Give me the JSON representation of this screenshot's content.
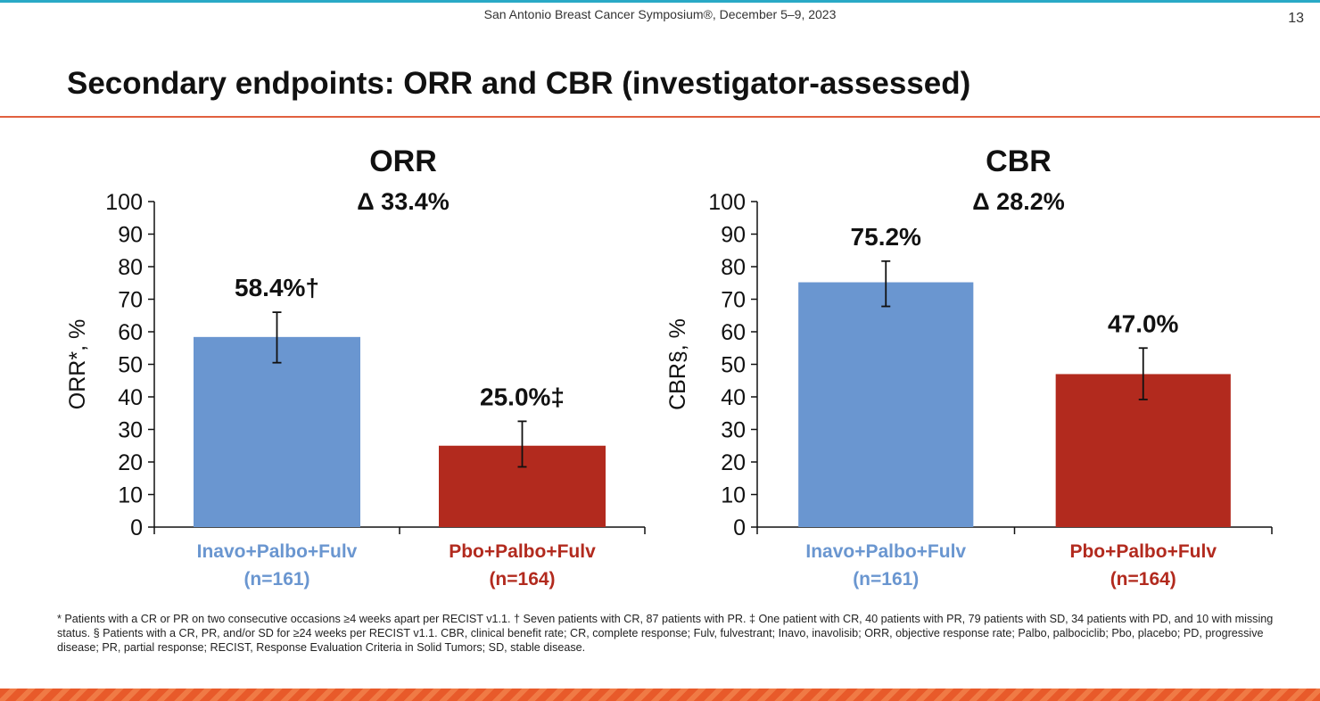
{
  "header": {
    "conference": "San Antonio Breast Cancer Symposium®, December 5–9, 2023",
    "page_number": "13"
  },
  "slide_title": "Secondary endpoints: ORR and CBR (investigator-assessed)",
  "colors": {
    "inavo": "#6a96d0",
    "pbo": "#b22a1e",
    "inavo_label": "#6a96d0",
    "pbo_label": "#b22a1e",
    "rule": "#e1603f"
  },
  "chart_data": [
    {
      "type": "bar",
      "title": "ORR",
      "subtitle": "Δ 33.4%",
      "ylabel": "ORR*, %",
      "ylim": [
        0,
        100
      ],
      "yticks": [
        "0",
        "10",
        "20",
        "30",
        "40",
        "50",
        "60",
        "70",
        "80",
        "90",
        "100"
      ],
      "grid": false,
      "categories": [
        {
          "line1": "Inavo+Palbo+Fulv",
          "line2": "(n=161)"
        },
        {
          "line1": "Pbo+Palbo+Fulv",
          "line2": "(n=164)"
        }
      ],
      "values": [
        58.4,
        25.0
      ],
      "error_low": [
        50.5,
        18.5
      ],
      "error_high": [
        66.0,
        32.5
      ],
      "data_labels": [
        "58.4%†",
        "25.0%‡"
      ]
    },
    {
      "type": "bar",
      "title": "CBR",
      "subtitle": "Δ 28.2%",
      "ylabel": "CBR§, %",
      "ylim": [
        0,
        100
      ],
      "yticks": [
        "0",
        "10",
        "20",
        "30",
        "40",
        "50",
        "60",
        "70",
        "80",
        "90",
        "100"
      ],
      "grid": false,
      "categories": [
        {
          "line1": "Inavo+Palbo+Fulv",
          "line2": "(n=161)"
        },
        {
          "line1": "Pbo+Palbo+Fulv",
          "line2": "(n=164)"
        }
      ],
      "values": [
        75.2,
        47.0
      ],
      "error_low": [
        67.8,
        39.2
      ],
      "error_high": [
        81.7,
        55.0
      ],
      "data_labels": [
        "75.2%",
        "47.0%"
      ]
    }
  ],
  "footnote": "* Patients with a CR or PR on two consecutive occasions ≥4 weeks apart per RECIST v1.1. † Seven patients with CR, 87 patients with PR. ‡ One patient with CR, 40 patients with PR, 79 patients with SD, 34 patients with PD, and 10 with missing status. § Patients with a CR, PR, and/or SD for ≥24 weeks per RECIST v1.1. CBR, clinical benefit rate; CR, complete response; Fulv, fulvestrant; Inavo, inavolisib; ORR, objective response rate; Palbo, palbociclib; Pbo, placebo; PD, progressive disease; PR, partial response; RECIST, Response Evaluation Criteria in Solid Tumors; SD, stable disease."
}
